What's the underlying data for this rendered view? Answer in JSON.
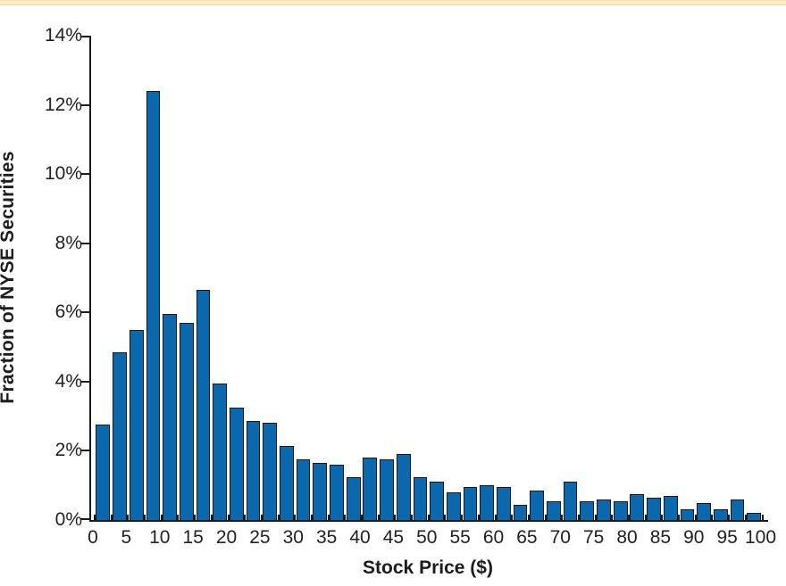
{
  "page": {
    "background_color": "#ffffff",
    "top_band_color": "#fbedc6"
  },
  "chart_data": {
    "type": "bar",
    "title": "",
    "xlabel": "Stock Price ($)",
    "ylabel": "Fraction of NYSE Securities",
    "xlim": [
      0,
      100
    ],
    "ylim": [
      0,
      14
    ],
    "grid": false,
    "legend": null,
    "bin_width": 2.5,
    "bar_color": "#0a68ae",
    "bar_edge_color": "#15191d",
    "axis_color": "#1b1b1b",
    "bins": [
      0,
      2.5,
      5,
      7.5,
      10,
      12.5,
      15,
      17.5,
      20,
      22.5,
      25,
      27.5,
      30,
      32.5,
      35,
      37.5,
      40,
      42.5,
      45,
      47.5,
      50,
      52.5,
      55,
      57.5,
      60,
      62.5,
      65,
      67.5,
      70,
      72.5,
      75,
      77.5,
      80,
      82.5,
      85,
      87.5,
      90,
      92.5,
      95,
      97.5
    ],
    "values_pct": [
      2.75,
      4.85,
      5.5,
      12.4,
      5.95,
      5.7,
      6.65,
      3.95,
      3.25,
      2.85,
      2.8,
      2.15,
      1.75,
      1.65,
      1.6,
      1.25,
      1.8,
      1.75,
      1.9,
      1.25,
      1.1,
      0.8,
      0.95,
      1.0,
      0.95,
      0.45,
      0.85,
      0.55,
      1.1,
      0.55,
      0.6,
      0.55,
      0.75,
      0.65,
      0.7,
      0.3,
      0.5,
      0.3,
      0.6,
      0.2
    ],
    "x_tick_values": [
      0,
      5,
      10,
      15,
      20,
      25,
      30,
      35,
      40,
      45,
      50,
      55,
      60,
      65,
      70,
      75,
      80,
      85,
      90,
      95,
      100
    ],
    "x_tick_labels": [
      "0",
      "5",
      "10",
      "15",
      "20",
      "25",
      "30",
      "35",
      "40",
      "45",
      "50",
      "55",
      "60",
      "65",
      "70",
      "75",
      "80",
      "85",
      "90",
      "95",
      "100"
    ],
    "y_tick_values": [
      0,
      2,
      4,
      6,
      8,
      10,
      12,
      14
    ],
    "y_tick_labels": [
      "0%",
      "2%",
      "4%",
      "6%",
      "8%",
      "10%",
      "12%",
      "14%"
    ]
  }
}
